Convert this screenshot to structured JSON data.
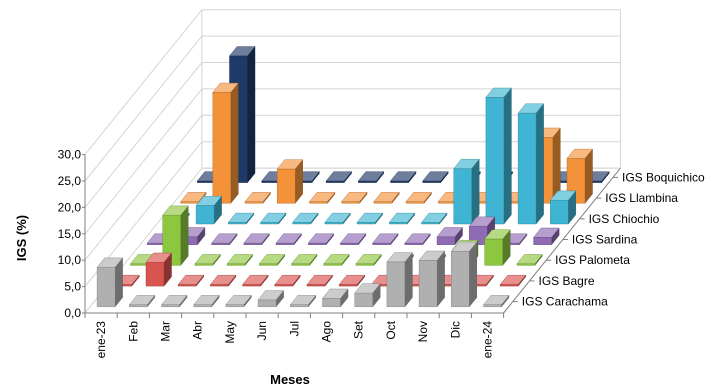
{
  "chart_data": {
    "type": "bar",
    "xlabel": "Meses",
    "ylabel": "IGS (%)",
    "ylim": [
      0,
      30
    ],
    "yticks": [
      "0,0",
      "5,0",
      "10,0",
      "15,0",
      "20,0",
      "25,0",
      "30,0"
    ],
    "categories": [
      "ene-23",
      "Feb",
      "Mar",
      "Abr",
      "May",
      "Jun",
      "Jul",
      "Ago",
      "Set",
      "Oct",
      "Nov",
      "Dic",
      "ene-24"
    ],
    "grid": true,
    "series": [
      {
        "name": "IGS Carachama",
        "color": "#b0b0b0",
        "values": [
          7.5,
          0.4,
          0.4,
          0.4,
          0.4,
          1.3,
          0.4,
          1.6,
          2.6,
          8.5,
          8.8,
          10.5,
          0.4
        ]
      },
      {
        "name": "IGS Bagre",
        "color": "#d9534f",
        "values": [
          0.3,
          4.5,
          0.3,
          0.3,
          0.3,
          0.3,
          0.3,
          0.3,
          0.3,
          0.3,
          0.3,
          0.3,
          0.3
        ]
      },
      {
        "name": "IGS Palometa",
        "color": "#8dc63f",
        "values": [
          0.3,
          9.5,
          0.3,
          0.3,
          0.3,
          0.3,
          0.3,
          0.3,
          0.3,
          0.3,
          3.0,
          5.0,
          0.3
        ]
      },
      {
        "name": "IGS Sardina",
        "color": "#8e6bb4",
        "values": [
          0.3,
          1.5,
          0.3,
          0.3,
          0.3,
          0.3,
          0.3,
          0.3,
          0.3,
          1.5,
          3.5,
          0.3,
          1.4
        ]
      },
      {
        "name": "IGS Chiochio",
        "color": "#3fb5d3",
        "values": [
          0.3,
          3.5,
          0.3,
          0.3,
          0.3,
          0.3,
          0.3,
          0.3,
          0.3,
          10.5,
          24.0,
          21.0,
          4.5
        ]
      },
      {
        "name": "IGS Llambina",
        "color": "#f4923a",
        "values": [
          0.3,
          21.0,
          0.3,
          6.5,
          0.3,
          0.3,
          0.3,
          0.3,
          0.3,
          0.3,
          0.3,
          12.5,
          8.5
        ]
      },
      {
        "name": "IGS Boquichico",
        "color": "#1f3a68",
        "values": [
          0.3,
          24.0,
          0.3,
          0.3,
          0.3,
          0.3,
          0.3,
          0.3,
          0.3,
          0.3,
          0.3,
          0.3,
          0.3
        ]
      }
    ]
  }
}
